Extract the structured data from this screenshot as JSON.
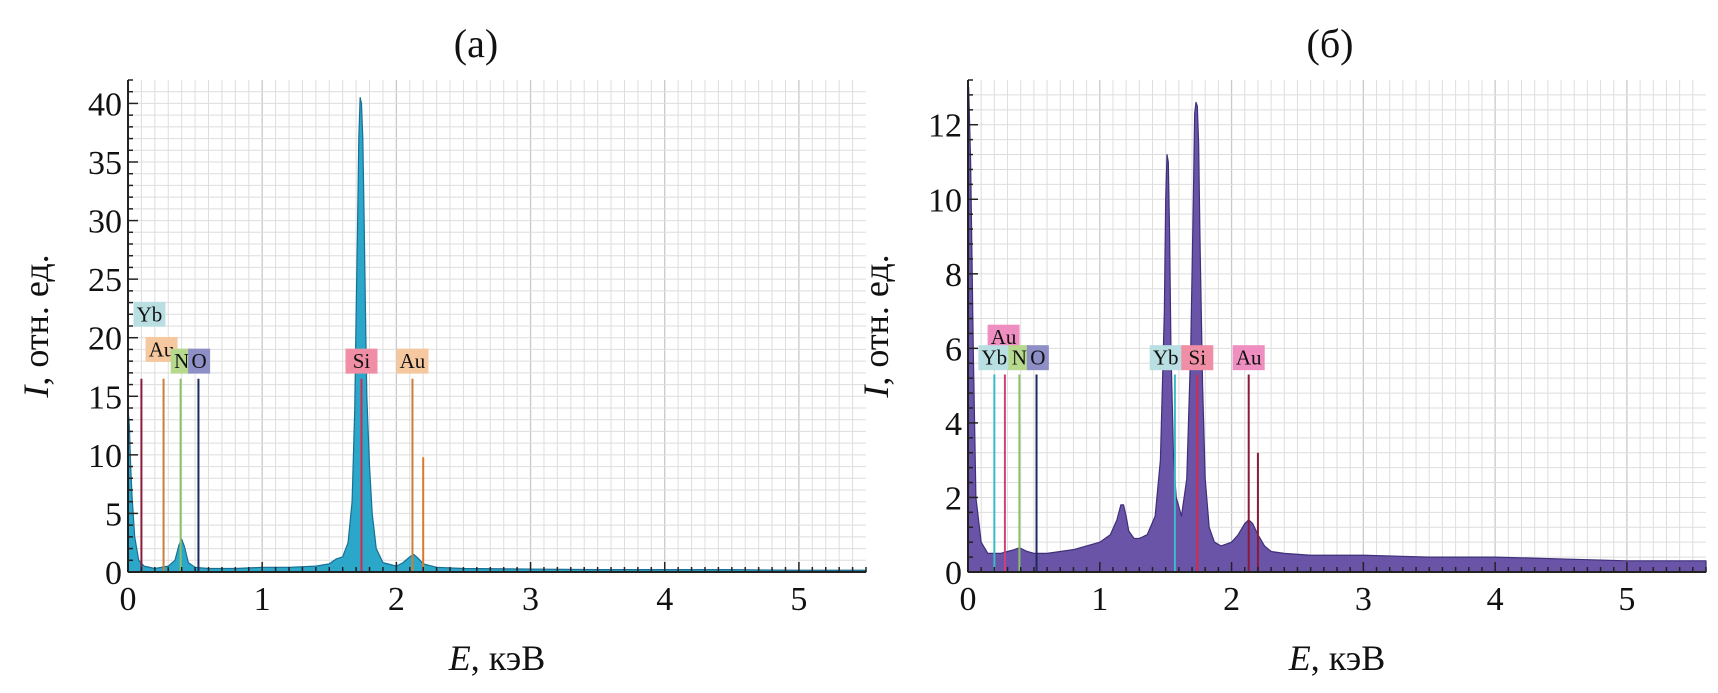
{
  "chart_data": [
    {
      "type": "area",
      "title": "(а)",
      "xlabel_var": "E",
      "xlabel_unit": ", кэВ",
      "ylabel_var": "I",
      "ylabel_unit": ", отн. ед.",
      "xlim": [
        0,
        5.5
      ],
      "ylim": [
        0,
        42
      ],
      "x_ticks": [
        0,
        1,
        2,
        3,
        4,
        5
      ],
      "y_ticks": [
        0,
        5,
        10,
        15,
        20,
        25,
        30,
        35,
        40
      ],
      "grid": true,
      "spectrum_color": "#2aa7c9",
      "spectrum_edge": "#1a6f95",
      "spectrum": {
        "x": [
          0.0,
          0.01,
          0.02,
          0.03,
          0.05,
          0.08,
          0.12,
          0.2,
          0.3,
          0.35,
          0.38,
          0.4,
          0.42,
          0.45,
          0.5,
          0.6,
          0.8,
          1.0,
          1.2,
          1.4,
          1.5,
          1.55,
          1.6,
          1.64,
          1.67,
          1.69,
          1.7,
          1.71,
          1.72,
          1.73,
          1.74,
          1.75,
          1.76,
          1.77,
          1.78,
          1.8,
          1.82,
          1.85,
          1.9,
          2.0,
          2.05,
          2.1,
          2.13,
          2.16,
          2.2,
          2.3,
          2.5,
          3.0,
          3.5,
          4.0,
          4.5,
          5.0,
          5.5
        ],
        "y": [
          14,
          12.5,
          9,
          6.5,
          3,
          1,
          0.5,
          0.3,
          0.5,
          1,
          2.3,
          2.8,
          2.2,
          0.8,
          0.4,
          0.3,
          0.3,
          0.4,
          0.4,
          0.5,
          0.7,
          1.1,
          1.3,
          2.5,
          6,
          14,
          22,
          29,
          37,
          40.5,
          40,
          37,
          30,
          22,
          15,
          9,
          5,
          2,
          0.8,
          0.5,
          0.8,
          1.3,
          1.5,
          1.2,
          0.7,
          0.4,
          0.3,
          0.25,
          0.2,
          0.2,
          0.2,
          0.15,
          0.15
        ]
      },
      "element_lines": [
        {
          "x": 0.1,
          "y": 16.5,
          "color": "#8b1a3a"
        },
        {
          "x": 0.265,
          "y": 16.5,
          "color": "#c8803a"
        },
        {
          "x": 0.392,
          "y": 16.5,
          "color": "#8ac06a"
        },
        {
          "x": 0.525,
          "y": 16.5,
          "color": "#1c2a5c"
        },
        {
          "x": 1.74,
          "y": 16.5,
          "color": "#d62a4a"
        },
        {
          "x": 2.12,
          "y": 16.5,
          "color": "#c8803a"
        },
        {
          "x": 2.2,
          "y": 9.8,
          "color": "#e0762a"
        }
      ],
      "element_labels": [
        {
          "text": "Yb",
          "x": 0.16,
          "y": 22.0,
          "bg": "#b9dfe3"
        },
        {
          "text": "Au",
          "x": 0.25,
          "y": 19.0,
          "bg": "#f5c8a0"
        },
        {
          "text": "N",
          "x": 0.4,
          "y": 18.0,
          "bg": "#b6d98e"
        },
        {
          "text": "O",
          "x": 0.53,
          "y": 18.0,
          "bg": "#8f8fc8"
        },
        {
          "text": "Si",
          "x": 1.74,
          "y": 18.0,
          "bg": "#ef8ea4"
        },
        {
          "text": "Au",
          "x": 2.12,
          "y": 18.0,
          "bg": "#f5c8a0"
        }
      ]
    },
    {
      "type": "area",
      "title": "(б)",
      "xlabel_var": "E",
      "xlabel_unit": ", кэВ",
      "ylabel_var": "I",
      "ylabel_unit": ", отн. ед.",
      "xlim": [
        0,
        5.6
      ],
      "ylim": [
        0,
        13.2
      ],
      "x_ticks": [
        0,
        1,
        2,
        3,
        4,
        5
      ],
      "y_ticks": [
        0,
        2,
        4,
        6,
        8,
        10,
        12
      ],
      "grid": true,
      "spectrum_color": "#6a54a8",
      "spectrum_edge": "#3e2f78",
      "spectrum": {
        "x": [
          0.0,
          0.005,
          0.02,
          0.04,
          0.06,
          0.1,
          0.15,
          0.2,
          0.25,
          0.3,
          0.35,
          0.39,
          0.42,
          0.45,
          0.5,
          0.6,
          0.7,
          0.8,
          0.9,
          1.0,
          1.08,
          1.13,
          1.16,
          1.18,
          1.2,
          1.22,
          1.26,
          1.3,
          1.36,
          1.42,
          1.46,
          1.49,
          1.5,
          1.51,
          1.52,
          1.53,
          1.54,
          1.56,
          1.58,
          1.62,
          1.66,
          1.69,
          1.71,
          1.72,
          1.73,
          1.74,
          1.75,
          1.76,
          1.78,
          1.8,
          1.83,
          1.87,
          1.92,
          2.0,
          2.05,
          2.1,
          2.13,
          2.16,
          2.2,
          2.25,
          2.3,
          2.4,
          2.6,
          3.0,
          3.5,
          4.0,
          4.5,
          5.0,
          5.6
        ],
        "y": [
          13,
          13,
          11,
          6,
          2,
          0.8,
          0.5,
          0.5,
          0.5,
          0.55,
          0.6,
          0.65,
          0.6,
          0.55,
          0.5,
          0.5,
          0.55,
          0.6,
          0.7,
          0.8,
          1.0,
          1.4,
          1.8,
          1.8,
          1.5,
          1.1,
          0.9,
          0.9,
          1.0,
          1.5,
          3,
          7,
          10,
          11.2,
          11,
          9,
          6,
          3,
          2,
          1.5,
          2.5,
          6,
          10,
          12.3,
          12.6,
          12.5,
          11.5,
          9,
          5,
          2.5,
          1.2,
          0.8,
          0.7,
          0.8,
          1.0,
          1.3,
          1.4,
          1.3,
          1.0,
          0.7,
          0.55,
          0.5,
          0.45,
          0.45,
          0.4,
          0.4,
          0.35,
          0.3,
          0.3
        ]
      },
      "element_lines": [
        {
          "x": 0.2,
          "y": 5.3,
          "color": "#3cbac8"
        },
        {
          "x": 0.28,
          "y": 5.3,
          "color": "#d0407a"
        },
        {
          "x": 0.39,
          "y": 5.3,
          "color": "#8ac06a"
        },
        {
          "x": 0.52,
          "y": 5.3,
          "color": "#1c2a5c"
        },
        {
          "x": 1.57,
          "y": 5.3,
          "color": "#3cbac8"
        },
        {
          "x": 1.74,
          "y": 5.3,
          "color": "#d62a4a"
        },
        {
          "x": 2.13,
          "y": 5.3,
          "color": "#8b1a3a"
        },
        {
          "x": 2.2,
          "y": 3.2,
          "color": "#8b1a3a"
        }
      ],
      "element_labels": [
        {
          "text": "Au",
          "x": 0.27,
          "y": 6.3,
          "bg": "#ef8ec0"
        },
        {
          "text": "Yb",
          "x": 0.2,
          "y": 5.75,
          "bg": "#b9dfe3"
        },
        {
          "text": "N",
          "x": 0.39,
          "y": 5.75,
          "bg": "#b6d98e"
        },
        {
          "text": "O",
          "x": 0.53,
          "y": 5.75,
          "bg": "#8f8fc8"
        },
        {
          "text": "Yb",
          "x": 1.5,
          "y": 5.75,
          "bg": "#b9dfe3"
        },
        {
          "text": "Si",
          "x": 1.74,
          "y": 5.75,
          "bg": "#ef8ea4"
        },
        {
          "text": "Au",
          "x": 2.13,
          "y": 5.75,
          "bg": "#ef8ec0"
        }
      ]
    }
  ]
}
